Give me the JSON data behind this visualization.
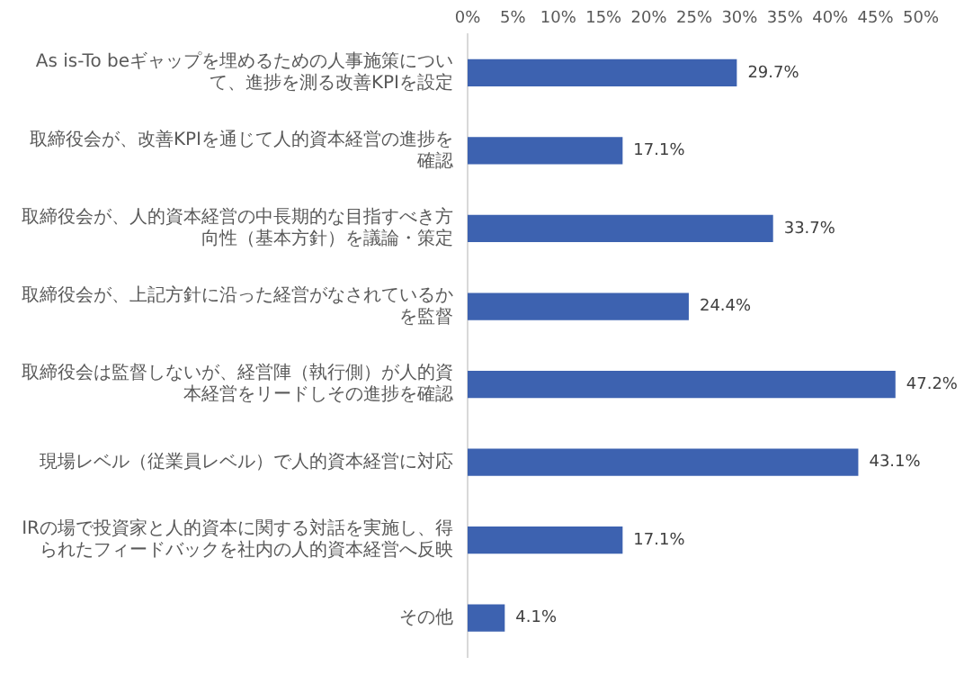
{
  "chart_data": {
    "type": "bar",
    "orientation": "horizontal",
    "categories": [
      "As is-To beギャップを埋めるための人事施策について、進捗を測る改善KPIを設定",
      "取締役会が、改善KPIを通じて人的資本経営の進捗を確認",
      "取締役会が、人的資本経営の中長期的な目指すべき方向性（基本方針）を議論・策定",
      "取締役会が、上記方針に沿った経営がなされているかを監督",
      "取締役会は監督しないが、経営陣（執行側）が人的資本経営をリードしその進捗を確認",
      "現場レベル（従業員レベル）で人的資本経営に対応",
      "IRの場で投資家と人的資本に関する対話を実施し、得られたフィードバックを社内の人的資本経営へ反映",
      "その他"
    ],
    "values": [
      29.7,
      17.1,
      33.7,
      24.4,
      47.2,
      43.1,
      17.1,
      4.1
    ],
    "value_labels": [
      "29.7%",
      "17.1%",
      "33.7%",
      "24.4%",
      "47.2%",
      "43.1%",
      "17.1%",
      "4.1%"
    ],
    "color": "#3d62b0",
    "xlim": [
      0,
      50
    ],
    "xticks": [
      {
        "value": 0,
        "label": "0%"
      },
      {
        "value": 5,
        "label": "5%"
      },
      {
        "value": 10,
        "label": "10%"
      },
      {
        "value": 15,
        "label": "15%"
      },
      {
        "value": 20,
        "label": "20%"
      },
      {
        "value": 25,
        "label": "25%"
      },
      {
        "value": 30,
        "label": "30%"
      },
      {
        "value": 35,
        "label": "35%"
      },
      {
        "value": 40,
        "label": "40%"
      },
      {
        "value": 45,
        "label": "45%"
      },
      {
        "value": 50,
        "label": "50%"
      }
    ],
    "grid": false,
    "legend": false
  }
}
